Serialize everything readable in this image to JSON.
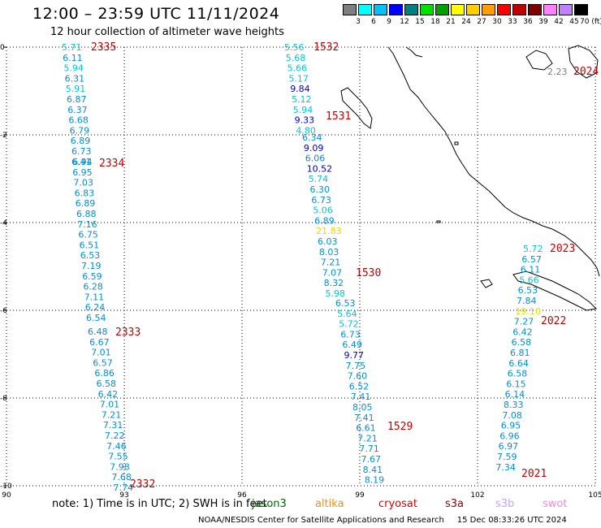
{
  "header": {
    "title": "12:00 – 23:59 UTC 11/11/2024",
    "subtitle": "12 hour collection of altimeter wave heights"
  },
  "colorbar": {
    "labels": [
      "3",
      "6",
      "9",
      "12",
      "15",
      "18",
      "21",
      "24",
      "27",
      "30",
      "33",
      "36",
      "39",
      "42",
      "45",
      "70 (ft)"
    ],
    "colors": [
      "#7f7f7f",
      "#00ffff",
      "#00c0ff",
      "#0000ff",
      "#008080",
      "#00e000",
      "#00a000",
      "#ffff00",
      "#ffd000",
      "#ffa000",
      "#ff0000",
      "#c00000",
      "#800000",
      "#ff80ff",
      "#c080ff",
      "#000000"
    ]
  },
  "axes": {
    "x_ticks": [
      "90",
      "93",
      "96",
      "99",
      "102",
      "105"
    ],
    "y_ticks": [
      "0",
      "-2",
      "-4",
      "-6",
      "-8",
      "-10"
    ]
  },
  "tracks": [
    {
      "time": "2335",
      "values": [
        "5.71",
        "6.11",
        "5.94",
        "6.31",
        "5.91",
        "6.87",
        "6.37",
        "6.68",
        "6.79",
        "6.89",
        "6.73",
        "6.94"
      ]
    },
    {
      "time": "2334",
      "values": [
        "6.41",
        "6.95",
        "7.03",
        "6.83",
        "6.89",
        "6.88",
        "7.16",
        "6.75",
        "6.51",
        "6.53",
        "7.19",
        "6.59",
        "6.28",
        "7.11",
        "6.24",
        "6.54"
      ]
    },
    {
      "time": "2333",
      "values": [
        "6.48",
        "6.67",
        "7.01",
        "6.57",
        "6.86",
        "6.58",
        "6.42",
        "7.01",
        "7.21",
        "7.31",
        "7.22",
        "7.46",
        "7.55",
        "7.98",
        "7.68",
        "7.74"
      ]
    },
    {
      "time": "2332",
      "values": []
    },
    {
      "time": "1532",
      "values": [
        "5.56",
        "5.68",
        "5.66",
        "5.17",
        "9.84",
        "5.12",
        "5.94",
        "9.33",
        "4.80"
      ]
    },
    {
      "time": "1531",
      "values": [
        "6.34",
        "9.09",
        "6.06",
        "10.52",
        "5.74",
        "6.30",
        "6.73",
        "5.06",
        "6.89",
        "21.83",
        "6.03",
        "8.03",
        "7.21",
        "7.07",
        "8.32",
        "5.98"
      ]
    },
    {
      "time": "1530",
      "values": [
        "6.53",
        "5.64",
        "5.72",
        "6.73",
        "6.49",
        "9.77",
        "7.75",
        "7.60",
        "6.52",
        "7.41",
        "8.05",
        "7.41",
        "6.61",
        "7.21",
        "7.71",
        "7.67",
        "8.41",
        "8.19"
      ]
    },
    {
      "time": "1529",
      "values": []
    },
    {
      "time": "2024",
      "values": [
        "2.23"
      ]
    },
    {
      "time": "2023",
      "values": [
        "5.72",
        "6.57",
        "6.11",
        "5.66",
        "6.53",
        "7.84",
        "19.10",
        "7.27",
        "6.42",
        "6.58",
        "6.81",
        "6.64",
        "6.58",
        "6.15",
        "6.14",
        "8.33",
        "7.08",
        "6.95",
        "6.96",
        "6.97",
        "7.59",
        "7.34"
      ]
    },
    {
      "time": "2022",
      "values": []
    },
    {
      "time": "2021",
      "values": []
    }
  ],
  "note": {
    "text": "note:  1) Time is in UTC;  2) SWH is in feet",
    "satellites": [
      {
        "name": "jason3",
        "color": "#006400"
      },
      {
        "name": "altika",
        "color": "#ff8c00"
      },
      {
        "name": "cryosat",
        "color": "#e00000"
      },
      {
        "name": "s3a",
        "color": "#8b0000"
      },
      {
        "name": "s3b",
        "color": "#c8a0ff"
      },
      {
        "name": "swot",
        "color": "#ff80e0"
      }
    ]
  },
  "footer": {
    "credit": "NOAA/NESDIS Center for Satellite Applications and Research",
    "timestamp": "15 Dec 08:33:26 UTC 2024"
  }
}
